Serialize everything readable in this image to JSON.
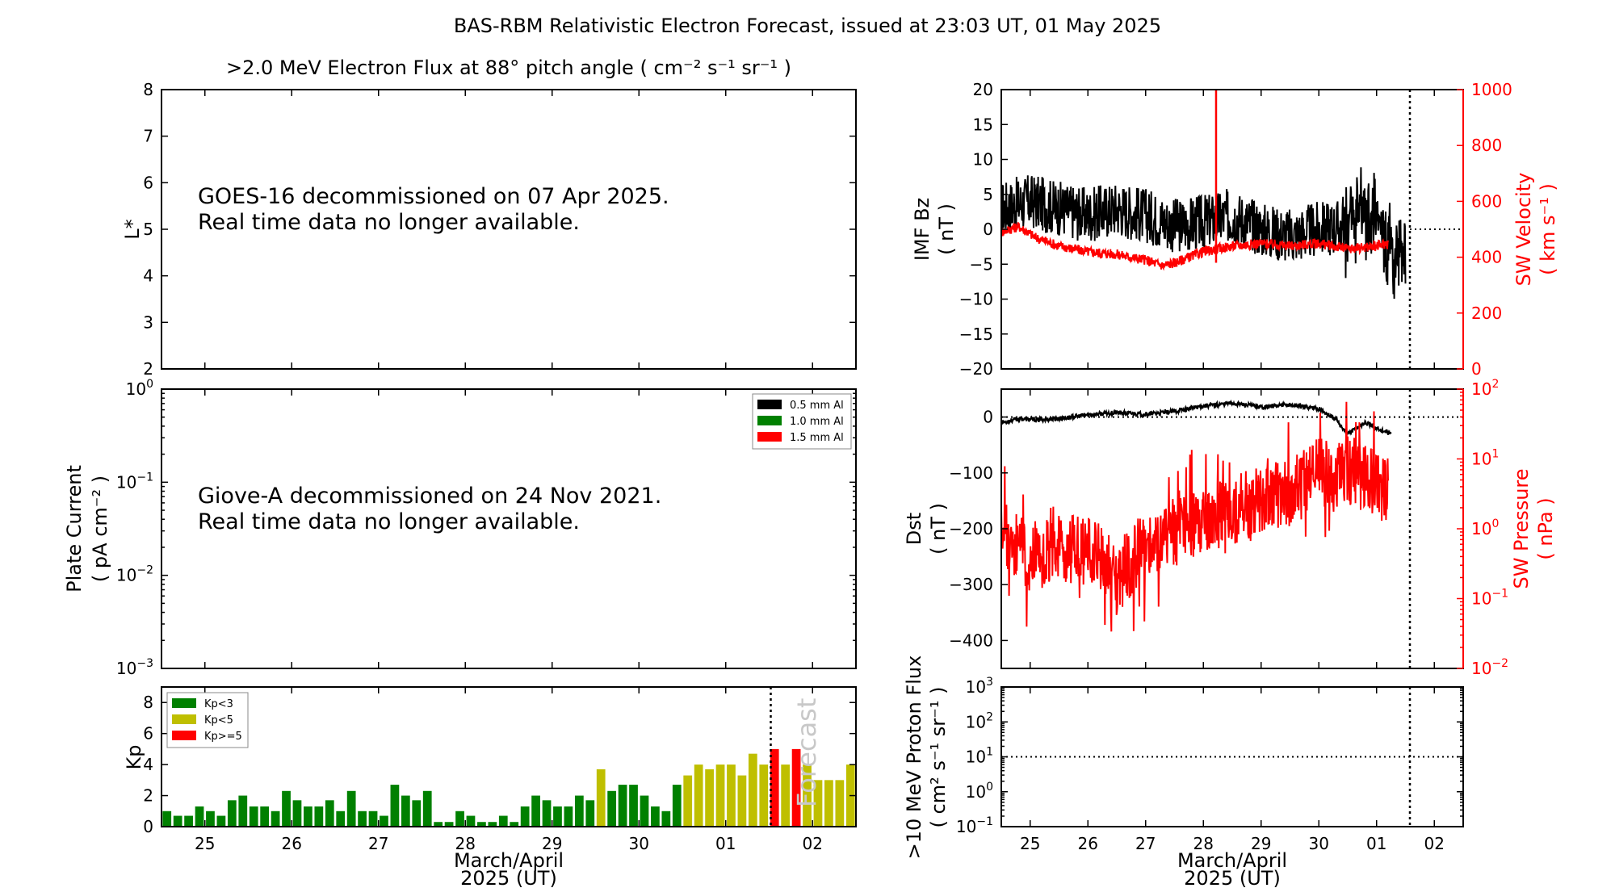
{
  "figure": {
    "title": "BAS-RBM Relativistic Electron Forecast, issued at 23:03 UT, 01 May 2025"
  },
  "colors": {
    "green": "#008000",
    "yellow": "#bfbf00",
    "red": "#ff0000",
    "black": "#000000",
    "forecast_text": "#c8c8c8"
  },
  "chart_data": [
    {
      "id": "electron-flux",
      "type": "heatmap",
      "title": ">2.0 MeV Electron Flux at 88° pitch angle ( cm⁻² s⁻¹ sr⁻¹ )",
      "ylabel": "L*",
      "ylim": [
        2,
        8
      ],
      "yticks": [
        "2",
        "3",
        "4",
        "5",
        "6",
        "7",
        "8"
      ],
      "message": [
        "GOES-16 decommissioned on 07 Apr 2025.",
        "Real time data no longer available."
      ]
    },
    {
      "id": "plate-current",
      "type": "line",
      "ylabel": "Plate Current",
      "ylabel2": "( pA cm⁻² )",
      "yscale": "log",
      "ylim": [
        0.001,
        1
      ],
      "yticks": [
        {
          "base": "10",
          "exp": "0"
        },
        {
          "base": "10",
          "exp": "−1"
        },
        {
          "base": "10",
          "exp": "−2"
        },
        {
          "base": "10",
          "exp": "−3"
        }
      ],
      "legend": [
        "0.5 mm Al",
        "1.0 mm Al",
        "1.5 mm Al"
      ],
      "legend_position": "top-right",
      "message": [
        "Giove-A decommissioned on 24 Nov 2021.",
        "Real time data no longer available."
      ]
    },
    {
      "id": "kp",
      "type": "bar",
      "ylabel": "Kp",
      "ylim": [
        0,
        9
      ],
      "yticks": [
        "0",
        "2",
        "4",
        "6",
        "8"
      ],
      "xlabel": "March/April",
      "xlabel2": "2025 (UT)",
      "xticks": [
        "25",
        "26",
        "27",
        "28",
        "29",
        "30",
        "01",
        "02"
      ],
      "legend": [
        "Kp<3",
        "Kp<5",
        "Kp>=5"
      ],
      "legend_position": "top-left",
      "forecast_label": "Forecast",
      "interval_hours": 3,
      "values": [
        1.0,
        0.7,
        0.7,
        1.3,
        1.0,
        0.7,
        1.7,
        2.0,
        1.3,
        1.3,
        1.0,
        2.3,
        1.7,
        1.3,
        1.3,
        1.7,
        1.0,
        2.3,
        1.0,
        1.0,
        0.7,
        2.7,
        2.0,
        1.7,
        2.3,
        0.3,
        0.3,
        1.0,
        0.7,
        0.3,
        0.3,
        0.7,
        0.3,
        1.3,
        2.0,
        1.7,
        1.3,
        1.3,
        2.0,
        1.7,
        3.7,
        2.3,
        2.7,
        2.7,
        2.0,
        1.3,
        1.0,
        2.7,
        3.3,
        4.0,
        3.7,
        4.0,
        4.0,
        3.3,
        4.7,
        4.0,
        5.0,
        4.0,
        5.0,
        4.0,
        3.0,
        3.0,
        3.0,
        4.0
      ]
    },
    {
      "id": "imf-bz",
      "type": "line",
      "ylabel": "IMF Bz",
      "ylabel2": "( nT )",
      "ylim": [
        -20,
        20
      ],
      "yticks": [
        "−20",
        "−15",
        "−10",
        "−5",
        "0",
        "5",
        "10",
        "15",
        "20"
      ],
      "y2label": "SW Velocity",
      "y2label2": "( km s⁻¹ )",
      "y2lim": [
        0,
        1000
      ],
      "y2ticks": [
        "0",
        "200",
        "400",
        "600",
        "800",
        "1000"
      ],
      "series": [
        {
          "axis": "left",
          "color": "#000000",
          "anchors": [
            [
              0,
              3
            ],
            [
              0.5,
              4
            ],
            [
              1,
              3
            ],
            [
              1.5,
              2
            ],
            [
              2,
              3
            ],
            [
              2.5,
              2
            ],
            [
              3,
              0.5
            ],
            [
              3.5,
              1
            ],
            [
              4,
              2
            ],
            [
              4.5,
              0
            ],
            [
              5,
              -1
            ],
            [
              5.5,
              0
            ],
            [
              6,
              0.5
            ],
            [
              6.5,
              2
            ],
            [
              6.8,
              -3
            ],
            [
              7,
              -5
            ]
          ],
          "jitter": 4
        },
        {
          "axis": "right",
          "color": "#ff0000",
          "anchors": [
            [
              0,
              490
            ],
            [
              0.3,
              510
            ],
            [
              0.6,
              470
            ],
            [
              1,
              440
            ],
            [
              1.5,
              420
            ],
            [
              2,
              410
            ],
            [
              2.5,
              390
            ],
            [
              2.8,
              370
            ],
            [
              3,
              380
            ],
            [
              3.5,
              420
            ],
            [
              4,
              440
            ],
            [
              4.5,
              450
            ],
            [
              5,
              440
            ],
            [
              5.5,
              450
            ],
            [
              6,
              430
            ],
            [
              6.5,
              440
            ],
            [
              6.7,
              450
            ]
          ],
          "jitter": 18
        }
      ],
      "spike": {
        "x": 3.72,
        "top": 1000,
        "bottom": 380
      }
    },
    {
      "id": "dst",
      "type": "line",
      "ylabel": "Dst",
      "ylabel2": "( nT )",
      "ylim": [
        -450,
        50
      ],
      "yticks": [
        "−400",
        "−300",
        "−200",
        "−100",
        "0"
      ],
      "y2label": "SW Pressure",
      "y2label2": "( nPa )",
      "y2scale": "log",
      "y2lim": [
        0.01,
        100
      ],
      "y2ticks": [
        {
          "base": "10",
          "exp": "−2"
        },
        {
          "base": "10",
          "exp": "−1"
        },
        {
          "base": "10",
          "exp": "0"
        },
        {
          "base": "10",
          "exp": "1"
        },
        {
          "base": "10",
          "exp": "2"
        }
      ],
      "series": [
        {
          "axis": "left",
          "color": "#000000",
          "anchors": [
            [
              0,
              -10
            ],
            [
              0.3,
              -3
            ],
            [
              0.6,
              -5
            ],
            [
              1,
              -3
            ],
            [
              1.5,
              4
            ],
            [
              2,
              8
            ],
            [
              2.5,
              5
            ],
            [
              3,
              10
            ],
            [
              3.5,
              20
            ],
            [
              4,
              25
            ],
            [
              4.5,
              18
            ],
            [
              5,
              22
            ],
            [
              5.5,
              15
            ],
            [
              5.8,
              -5
            ],
            [
              6,
              -30
            ],
            [
              6.3,
              -10
            ],
            [
              6.6,
              -25
            ],
            [
              6.75,
              -30
            ]
          ],
          "jitter": 4
        },
        {
          "axis": "right",
          "color": "#ff0000",
          "anchors": [
            [
              0,
              1.0
            ],
            [
              0.2,
              0.6
            ],
            [
              0.5,
              0.4
            ],
            [
              1,
              0.5
            ],
            [
              1.5,
              0.5
            ],
            [
              1.9,
              0.3
            ],
            [
              2,
              0.15
            ],
            [
              2.2,
              0.3
            ],
            [
              2.5,
              0.6
            ],
            [
              3,
              0.9
            ],
            [
              3.5,
              1.2
            ],
            [
              4,
              1.8
            ],
            [
              4.5,
              2.5
            ],
            [
              5,
              3.2
            ],
            [
              5.3,
              4.5
            ],
            [
              5.5,
              8.0
            ],
            [
              5.7,
              5.0
            ],
            [
              6,
              7.0
            ],
            [
              6.4,
              5.0
            ],
            [
              6.7,
              4.0
            ]
          ],
          "jitter": 0.5
        }
      ]
    },
    {
      "id": "proton-flux",
      "type": "line",
      "ylabel": ">10 MeV Proton Flux",
      "ylabel2": "( cm² s⁻¹ sr⁻¹ )",
      "yscale": "log",
      "ylim": [
        0.1,
        1000
      ],
      "yticks": [
        {
          "base": "10",
          "exp": "−1"
        },
        {
          "base": "10",
          "exp": "0"
        },
        {
          "base": "10",
          "exp": "1"
        },
        {
          "base": "10",
          "exp": "2"
        },
        {
          "base": "10",
          "exp": "3"
        }
      ],
      "threshold": 10,
      "xlabel": "March/April",
      "xlabel2": "2025 (UT)",
      "xticks": [
        "25",
        "26",
        "27",
        "28",
        "29",
        "30",
        "01",
        "02"
      ]
    }
  ]
}
